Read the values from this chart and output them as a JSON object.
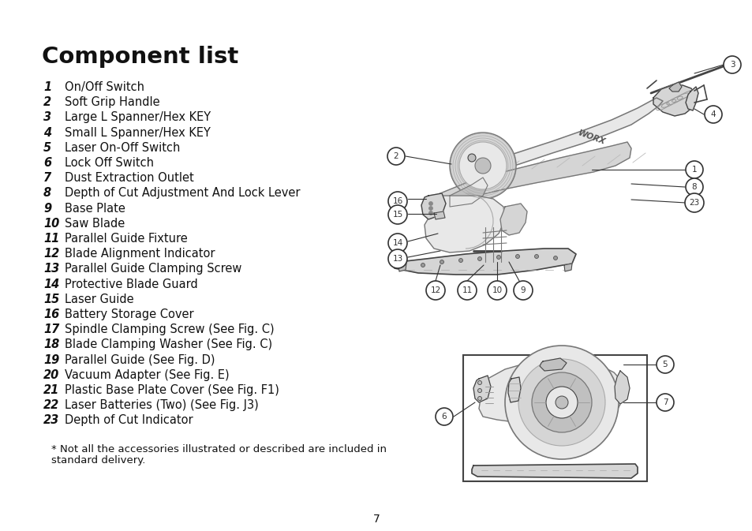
{
  "title": "Component list",
  "bg_color": "#ffffff",
  "text_color": "#111111",
  "page_number": "7",
  "components": [
    [
      "1",
      "On/Off Switch"
    ],
    [
      "2",
      "Soft Grip Handle"
    ],
    [
      "3",
      "Large L Spanner/Hex KEY"
    ],
    [
      "4",
      "Small L Spanner/Hex KEY"
    ],
    [
      "5",
      "Laser On-Off Switch"
    ],
    [
      "6",
      "Lock Off Switch"
    ],
    [
      "7",
      "Dust Extraction Outlet"
    ],
    [
      "8",
      "Depth of Cut Adjustment And Lock Lever"
    ],
    [
      "9",
      "Base Plate"
    ],
    [
      "10",
      "Saw Blade"
    ],
    [
      "11",
      "Parallel Guide Fixture"
    ],
    [
      "12",
      "Blade Alignment Indicator"
    ],
    [
      "13",
      "Parallel Guide Clamping Screw"
    ],
    [
      "14",
      "Protective Blade Guard"
    ],
    [
      "15",
      "Laser Guide"
    ],
    [
      "16",
      "Battery Storage Cover"
    ],
    [
      "17",
      "Spindle Clamping Screw (See Fig. C)"
    ],
    [
      "18",
      "Blade Clamping Washer (See Fig. C)"
    ],
    [
      "19",
      "Parallel Guide (See Fig. D)"
    ],
    [
      "20",
      "Vacuum Adapter (See Fig. E)"
    ],
    [
      "21",
      "Plastic Base Plate Cover (See Fig. F1)"
    ],
    [
      "22",
      "Laser Batteries (Two) (See Fig. J3)"
    ],
    [
      "23",
      "Depth of Cut Indicator"
    ]
  ],
  "footnote_line1": "* Not all the accessories illustrated or described are included in",
  "footnote_line2": "standard delivery.",
  "title_fontsize": 21,
  "num_fontsize": 10.5,
  "text_fontsize": 10.5,
  "footnote_fontsize": 9.5,
  "lc": "#777777",
  "lc_dark": "#444444",
  "lc_light": "#aaaaaa",
  "fill_dark": "#c0c0c0",
  "fill_mid": "#d5d5d5",
  "fill_light": "#e8e8e8",
  "label_ec": "#333333",
  "label_fs": 7.5
}
